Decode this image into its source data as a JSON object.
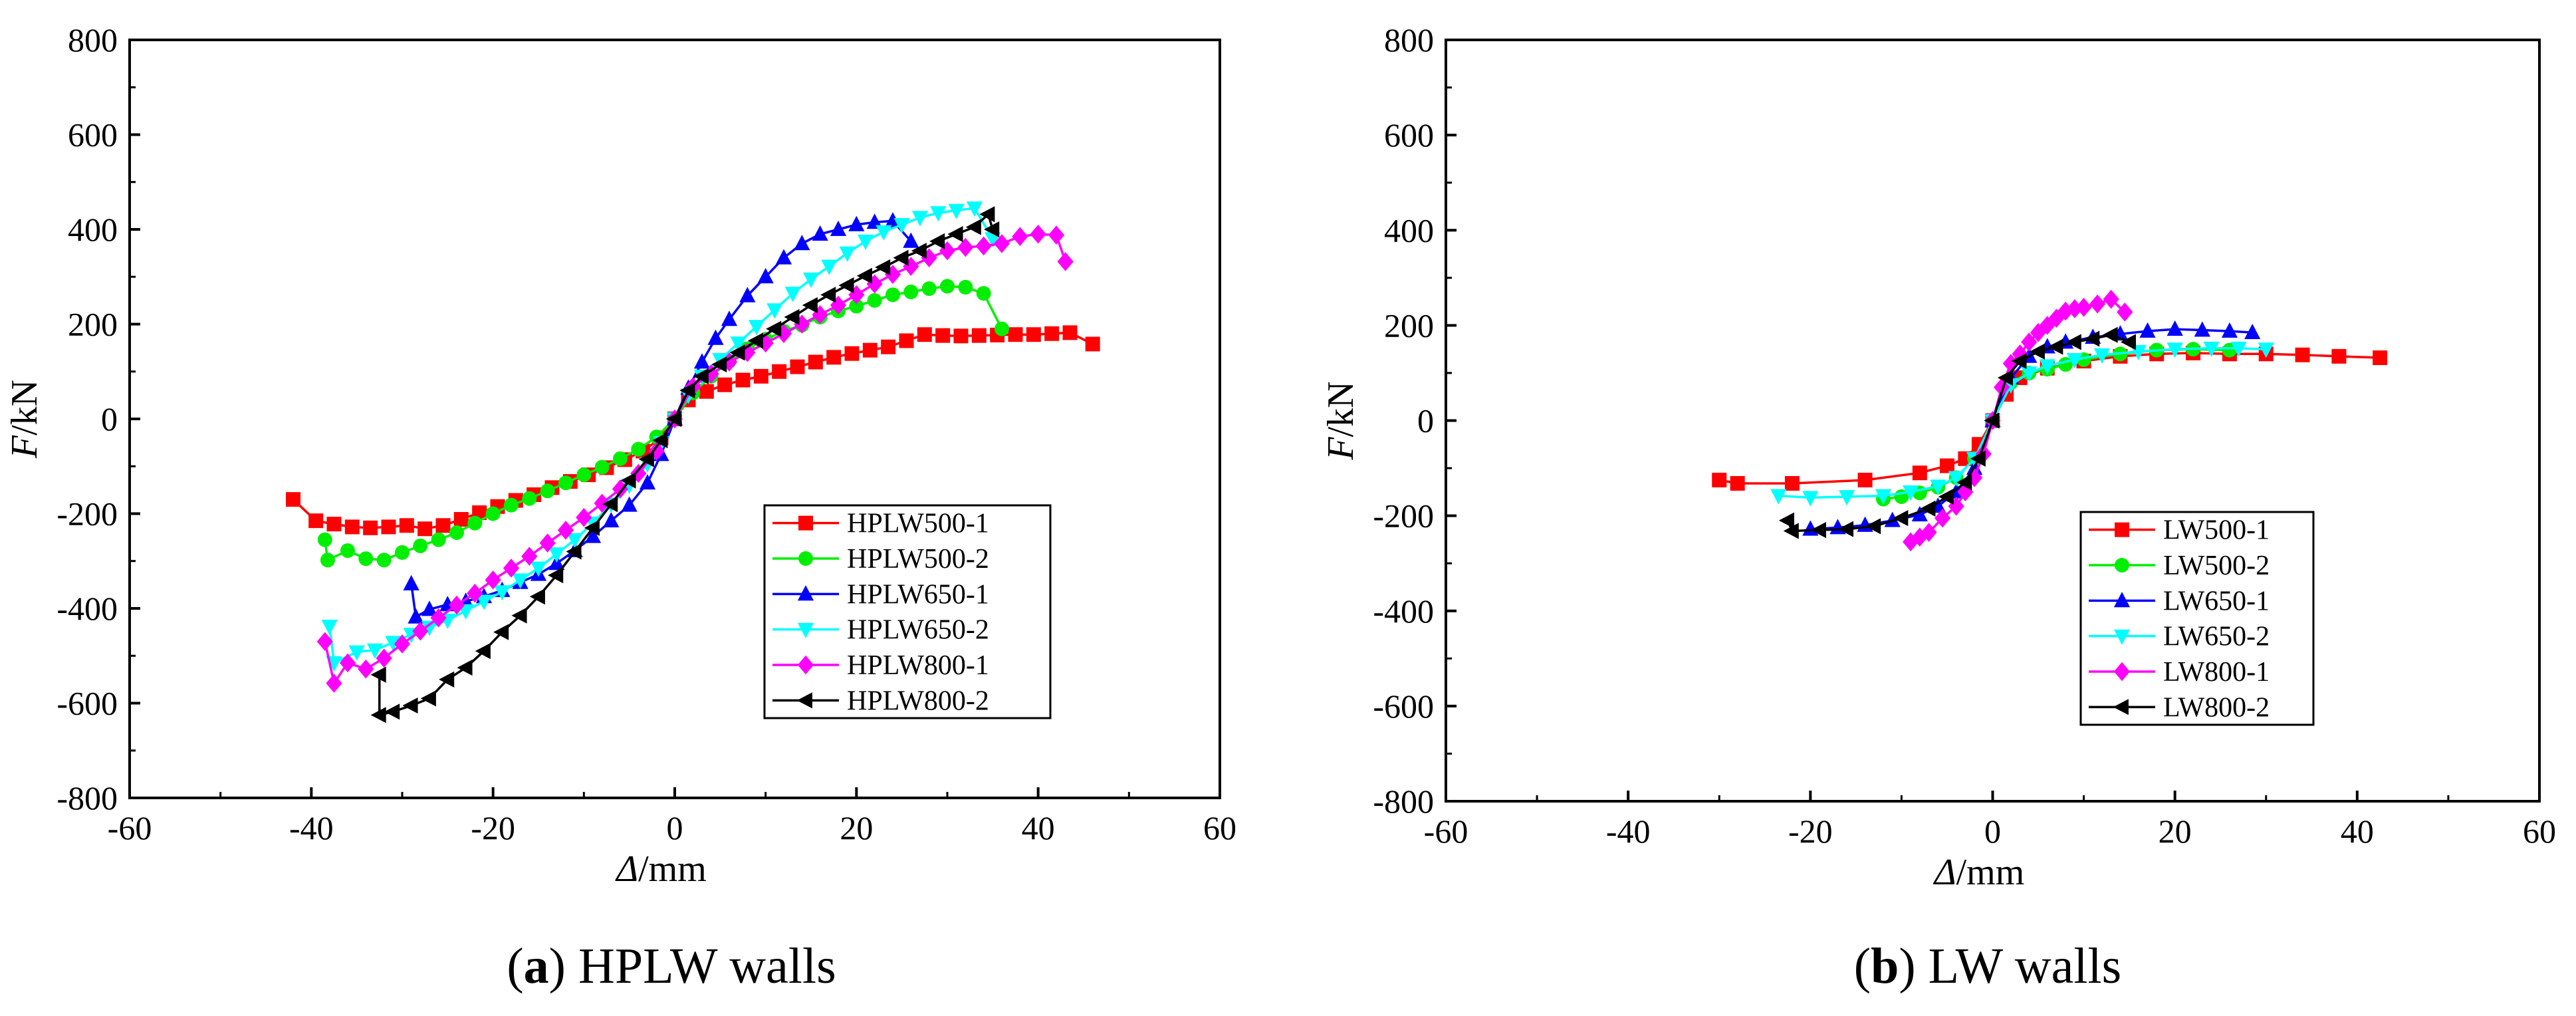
{
  "figure": {
    "captions": [
      {
        "letter": "a",
        "text": "HPLW walls"
      },
      {
        "letter": "b",
        "text": "LW walls"
      }
    ]
  },
  "chart_data": [
    {
      "type": "line",
      "panel": "a",
      "title": "(a) HPLW walls",
      "xlabel_symbol": "Δ",
      "xlabel_unit": "/mm",
      "ylabel_symbol": "F",
      "ylabel_unit": "/kN",
      "xlim": [
        -60,
        60
      ],
      "ylim": [
        -800,
        800
      ],
      "x_ticks": [
        -60,
        -40,
        -20,
        0,
        20,
        40,
        60
      ],
      "y_ticks": [
        -800,
        -600,
        -400,
        -200,
        0,
        200,
        400,
        600,
        800
      ],
      "legend_position": "lower-right",
      "series": [
        {
          "name": "HPLW500-1",
          "color": "#ff0000",
          "marker": "square",
          "x": [
            -42,
            -39.5,
            -37.5,
            -35.5,
            -33.5,
            -31.5,
            -29.5,
            -27.5,
            -25.5,
            -23.5,
            -21.5,
            -19.5,
            -17.5,
            -15.5,
            -13.5,
            -11.5,
            -9.5,
            -7.5,
            -5.5,
            -3.5,
            -1.5,
            0,
            1.5,
            3.5,
            5.5,
            7.5,
            9.5,
            11.5,
            13.5,
            15.5,
            17.5,
            19.5,
            21.5,
            23.5,
            25.5,
            27.5,
            29.5,
            31.5,
            33.5,
            35.5,
            37.5,
            39.5,
            41.5,
            43.5,
            46
          ],
          "y": [
            -170,
            -215,
            -222,
            -228,
            -230,
            -228,
            -225,
            -232,
            -225,
            -212,
            -198,
            -185,
            -172,
            -160,
            -145,
            -132,
            -118,
            -103,
            -86,
            -68,
            -40,
            0,
            40,
            58,
            72,
            82,
            90,
            100,
            110,
            120,
            130,
            138,
            145,
            152,
            165,
            178,
            176,
            175,
            176,
            177,
            178,
            178,
            180,
            182,
            158
          ]
        },
        {
          "name": "HPLW500-2",
          "color": "#00ee00",
          "marker": "circle",
          "x": [
            -38.5,
            -38.2,
            -36,
            -34,
            -32,
            -30,
            -28,
            -26,
            -24,
            -22,
            -20,
            -18,
            -16,
            -14,
            -12,
            -10,
            -8,
            -6,
            -4,
            -2,
            0,
            2,
            4,
            6,
            8,
            10,
            12,
            14,
            16,
            18,
            20,
            22,
            24,
            26,
            28,
            30,
            32,
            34,
            36
          ],
          "y": [
            -255,
            -298,
            -278,
            -295,
            -298,
            -282,
            -268,
            -255,
            -240,
            -220,
            -200,
            -182,
            -168,
            -152,
            -135,
            -118,
            -102,
            -84,
            -64,
            -38,
            0,
            55,
            90,
            122,
            148,
            168,
            185,
            198,
            215,
            228,
            238,
            250,
            262,
            268,
            275,
            280,
            278,
            265,
            190
          ]
        },
        {
          "name": "HPLW650-1",
          "color": "#0000ff",
          "marker": "triangle-up",
          "x": [
            -29,
            -28.5,
            -27,
            -25,
            -23,
            -21,
            -19,
            -17,
            -15,
            -13,
            -11,
            -9,
            -7,
            -5,
            -3,
            -1.5,
            0,
            1.5,
            3,
            4.5,
            6,
            8,
            10,
            12,
            14,
            16,
            18,
            20,
            22,
            24,
            26
          ],
          "y": [
            -348,
            -418,
            -402,
            -392,
            -385,
            -375,
            -362,
            -345,
            -328,
            -305,
            -278,
            -248,
            -215,
            -182,
            -135,
            -75,
            0,
            65,
            120,
            170,
            210,
            260,
            300,
            340,
            370,
            390,
            400,
            410,
            415,
            418,
            375
          ]
        },
        {
          "name": "HPLW650-2",
          "color": "#00ffff",
          "marker": "triangle-down",
          "x": [
            -38,
            -37.5,
            -35,
            -33,
            -31,
            -29,
            -27,
            -25,
            -23,
            -21,
            -19,
            -17,
            -15,
            -13,
            -11,
            -9,
            -7,
            -5,
            -3,
            -1.5,
            0,
            1.5,
            3,
            5,
            7,
            9,
            11,
            13,
            15,
            17,
            19,
            21,
            23,
            25,
            27,
            29,
            31,
            33,
            35
          ],
          "y": [
            -438,
            -515,
            -492,
            -488,
            -472,
            -455,
            -440,
            -425,
            -405,
            -385,
            -365,
            -340,
            -315,
            -285,
            -255,
            -220,
            -180,
            -140,
            -95,
            -50,
            0,
            50,
            90,
            125,
            160,
            195,
            230,
            265,
            295,
            322,
            350,
            375,
            395,
            410,
            425,
            435,
            440,
            445,
            380
          ]
        },
        {
          "name": "HPLW800-1",
          "color": "#ff00ff",
          "marker": "diamond",
          "x": [
            -38.5,
            -37.5,
            -36,
            -34,
            -32,
            -30,
            -28,
            -26,
            -24,
            -22,
            -20,
            -18,
            -16,
            -14,
            -12,
            -10,
            -8,
            -6,
            -4,
            -2,
            0,
            2,
            4,
            6,
            8,
            10,
            12,
            14,
            16,
            18,
            20,
            22,
            24,
            26,
            28,
            30,
            32,
            34,
            36,
            38,
            40,
            42,
            43
          ],
          "y": [
            -470,
            -558,
            -515,
            -528,
            -505,
            -475,
            -448,
            -420,
            -393,
            -368,
            -340,
            -315,
            -290,
            -262,
            -235,
            -208,
            -178,
            -148,
            -115,
            -68,
            0,
            68,
            95,
            120,
            140,
            160,
            180,
            200,
            220,
            240,
            262,
            285,
            305,
            322,
            340,
            355,
            362,
            365,
            370,
            385,
            390,
            388,
            332
          ]
        },
        {
          "name": "HPLW800-2",
          "color": "#000000",
          "marker": "triangle-left",
          "x": [
            -32.5,
            -32.5,
            -31,
            -29,
            -27,
            -25,
            -23,
            -21,
            -19,
            -17,
            -15,
            -13,
            -11,
            -9,
            -7,
            -5,
            -3,
            -1.5,
            0,
            1.5,
            3,
            5,
            7,
            9,
            11,
            13,
            15,
            17,
            19,
            21,
            23,
            25,
            27,
            29,
            31,
            33,
            34.5,
            35
          ],
          "y": [
            -540,
            -625,
            -618,
            -605,
            -590,
            -550,
            -525,
            -490,
            -450,
            -415,
            -375,
            -330,
            -280,
            -230,
            -180,
            -130,
            -85,
            -45,
            0,
            60,
            90,
            115,
            140,
            165,
            190,
            215,
            240,
            262,
            282,
            302,
            320,
            340,
            355,
            375,
            390,
            405,
            432,
            400
          ]
        }
      ]
    },
    {
      "type": "line",
      "panel": "b",
      "title": "(b) LW walls",
      "xlabel_symbol": "Δ",
      "xlabel_unit": "/mm",
      "ylabel_symbol": "F",
      "ylabel_unit": "/kN",
      "xlim": [
        -60,
        60
      ],
      "ylim": [
        -800,
        800
      ],
      "x_ticks": [
        -60,
        -40,
        -20,
        0,
        20,
        40,
        60
      ],
      "y_ticks": [
        -800,
        -600,
        -400,
        -200,
        0,
        200,
        400,
        600,
        800
      ],
      "legend_position": "lower-right",
      "series": [
        {
          "name": "LW500-1",
          "color": "#ff0000",
          "marker": "square",
          "x": [
            -30,
            -28,
            -22,
            -14,
            -8,
            -5,
            -3,
            -1.5,
            0,
            1.5,
            3,
            6,
            10,
            14,
            18,
            22,
            26,
            30,
            34,
            38,
            42.5
          ],
          "y": [
            -125,
            -132,
            -132,
            -125,
            -110,
            -95,
            -80,
            -50,
            0,
            55,
            90,
            110,
            125,
            135,
            140,
            142,
            140,
            140,
            138,
            135,
            132
          ]
        },
        {
          "name": "LW500-2",
          "color": "#00ee00",
          "marker": "circle",
          "x": [
            -12,
            -10,
            -8,
            -6,
            -4,
            -2,
            0,
            2,
            4,
            6,
            8,
            10,
            14,
            18,
            22,
            26
          ],
          "y": [
            -165,
            -160,
            -152,
            -140,
            -120,
            -80,
            0,
            80,
            100,
            108,
            118,
            128,
            140,
            148,
            150,
            148
          ]
        },
        {
          "name": "LW650-1",
          "color": "#0000ff",
          "marker": "triangle-up",
          "x": [
            -20,
            -17,
            -14,
            -11,
            -8,
            -6,
            -4,
            -2,
            0,
            2,
            4,
            6,
            8,
            11,
            14,
            17,
            20,
            23,
            26,
            28.5
          ],
          "y": [
            -228,
            -225,
            -220,
            -210,
            -198,
            -180,
            -150,
            -100,
            0,
            90,
            135,
            155,
            165,
            175,
            182,
            188,
            192,
            190,
            188,
            185
          ]
        },
        {
          "name": "LW650-2",
          "color": "#00ffff",
          "marker": "triangle-down",
          "x": [
            -23.5,
            -20,
            -16,
            -12,
            -9,
            -6,
            -4,
            -2,
            0,
            2,
            4,
            6,
            9,
            12,
            16,
            20,
            24,
            27,
            30
          ],
          "y": [
            -158,
            -162,
            -160,
            -158,
            -150,
            -138,
            -120,
            -80,
            0,
            75,
            100,
            115,
            128,
            138,
            145,
            150,
            152,
            152,
            150
          ]
        },
        {
          "name": "LW800-1",
          "color": "#ff00ff",
          "marker": "diamond",
          "x": [
            -9,
            -8,
            -7,
            -5.5,
            -4,
            -3,
            -2,
            -1,
            0,
            1,
            2,
            3,
            4,
            5,
            6,
            7,
            8,
            9,
            10,
            11.5,
            13,
            14.5
          ],
          "y": [
            -255,
            -245,
            -235,
            -205,
            -180,
            -150,
            -120,
            -70,
            0,
            70,
            120,
            140,
            165,
            185,
            200,
            215,
            230,
            235,
            238,
            245,
            255,
            228
          ]
        },
        {
          "name": "LW800-2",
          "color": "#000000",
          "marker": "triangle-left",
          "x": [
            -22.5,
            -22,
            -19,
            -16,
            -13,
            -10,
            -7,
            -5,
            -3,
            -1.5,
            0,
            1.5,
            3,
            5,
            7,
            9,
            11,
            13,
            15
          ],
          "y": [
            -210,
            -232,
            -230,
            -228,
            -222,
            -205,
            -185,
            -160,
            -130,
            -80,
            0,
            90,
            125,
            145,
            155,
            165,
            172,
            180,
            165
          ]
        }
      ]
    }
  ]
}
